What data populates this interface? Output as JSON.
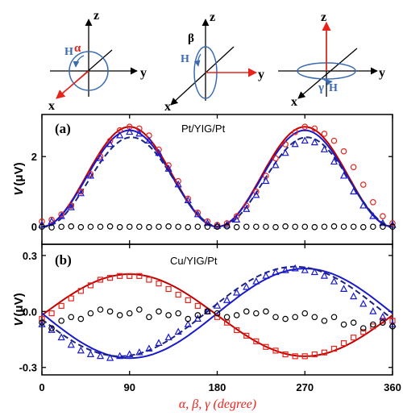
{
  "chart_data": [
    {
      "type": "scatter",
      "panel_label": "(a)",
      "sample_label": "Pt/YIG/Pt",
      "xlabel": "",
      "ylabel_main": "V",
      "ylabel_unit": "(μV)",
      "xlim": [
        0,
        360
      ],
      "ylim": [
        -0.5,
        3.2
      ],
      "yticks": [
        0,
        2
      ],
      "series": [
        {
          "color": "#e8231c",
          "marker": "o",
          "x": [
            0,
            10,
            20,
            30,
            40,
            50,
            60,
            70,
            80,
            90,
            100,
            110,
            120,
            130,
            140,
            150,
            160,
            170,
            180,
            190,
            200,
            210,
            220,
            230,
            240,
            250,
            260,
            270,
            280,
            290,
            300,
            310,
            320,
            330,
            340,
            350,
            360
          ],
          "y": [
            0.15,
            0.2,
            0.35,
            0.6,
            1.0,
            1.5,
            2.0,
            2.45,
            2.75,
            2.85,
            2.8,
            2.6,
            2.2,
            1.75,
            1.3,
            0.8,
            0.4,
            0.15,
            0.05,
            0.1,
            0.3,
            0.6,
            1.0,
            1.45,
            1.95,
            2.35,
            2.7,
            2.85,
            2.8,
            2.65,
            2.45,
            2.15,
            1.7,
            1.2,
            0.7,
            0.3,
            0.1
          ]
        },
        {
          "color": "#1a1acc",
          "marker": "^",
          "x": [
            0,
            10,
            20,
            30,
            40,
            50,
            60,
            70,
            80,
            90,
            100,
            110,
            120,
            130,
            140,
            150,
            160,
            170,
            180,
            190,
            200,
            210,
            220,
            230,
            240,
            250,
            260,
            270,
            280,
            290,
            300,
            310,
            320,
            330,
            340,
            350,
            360
          ],
          "y": [
            0.05,
            0.15,
            0.3,
            0.55,
            0.95,
            1.45,
            1.95,
            2.35,
            2.6,
            2.7,
            2.65,
            2.45,
            2.1,
            1.65,
            1.2,
            0.75,
            0.35,
            0.1,
            0.02,
            0.05,
            0.2,
            0.5,
            0.9,
            1.3,
            1.75,
            2.1,
            2.35,
            2.45,
            2.4,
            2.2,
            1.85,
            1.45,
            1.0,
            0.6,
            0.3,
            0.1,
            0.05
          ]
        },
        {
          "color": "#000000",
          "marker": "o",
          "x": [
            0,
            10,
            20,
            30,
            40,
            50,
            60,
            70,
            80,
            90,
            100,
            110,
            120,
            130,
            140,
            150,
            160,
            170,
            180,
            190,
            200,
            210,
            220,
            230,
            240,
            250,
            260,
            270,
            280,
            290,
            300,
            310,
            320,
            330,
            340,
            350,
            360
          ],
          "y": [
            0.0,
            -0.02,
            0.0,
            0.01,
            -0.01,
            0.0,
            0.0,
            0.01,
            -0.01,
            0.0,
            0.0,
            -0.01,
            0.0,
            0.01,
            0.0,
            -0.01,
            0.0,
            0.0,
            0.0,
            0.01,
            -0.01,
            0.0,
            0.0,
            0.0,
            -0.01,
            0.01,
            0.0,
            0.0,
            -0.01,
            0.0,
            0.01,
            0.0,
            0.0,
            -0.01,
            0.0,
            0.0,
            0.0
          ]
        }
      ],
      "fits": [
        {
          "color": "#c00000",
          "style": "solid",
          "amplitude": 2.85,
          "offset": 0.0
        },
        {
          "color": "#1a1acc",
          "style": "solid",
          "amplitude": 2.75,
          "offset": 0.0
        },
        {
          "color": "#1a237e",
          "style": "dashed",
          "amplitude": 2.55,
          "offset": 0.0
        }
      ]
    },
    {
      "type": "scatter",
      "panel_label": "(b)",
      "sample_label": "Cu/YIG/Pt",
      "xlabel": "α, β, γ (degree)",
      "ylabel_main": "V",
      "ylabel_unit": "(μV)",
      "xlim": [
        0,
        360
      ],
      "xticks": [
        0,
        90,
        180,
        270,
        360
      ],
      "ylim": [
        -0.34,
        0.36
      ],
      "yticks": [
        "-0.3",
        "0.0",
        "0.3"
      ],
      "series": [
        {
          "color": "#e8231c",
          "marker": "s",
          "x": [
            0,
            10,
            20,
            30,
            40,
            50,
            60,
            70,
            80,
            90,
            100,
            110,
            120,
            130,
            140,
            150,
            160,
            170,
            180,
            190,
            200,
            210,
            220,
            230,
            240,
            250,
            260,
            270,
            280,
            290,
            300,
            310,
            320,
            330,
            340,
            350,
            360
          ],
          "y": [
            -0.04,
            -0.01,
            0.03,
            0.07,
            0.11,
            0.14,
            0.17,
            0.18,
            0.19,
            0.19,
            0.19,
            0.17,
            0.15,
            0.12,
            0.09,
            0.06,
            0.03,
            0.0,
            -0.03,
            -0.06,
            -0.1,
            -0.13,
            -0.16,
            -0.19,
            -0.21,
            -0.23,
            -0.24,
            -0.24,
            -0.23,
            -0.22,
            -0.2,
            -0.17,
            -0.14,
            -0.11,
            -0.08,
            -0.05,
            -0.05
          ]
        },
        {
          "color": "#1a1acc",
          "marker": "^",
          "x": [
            0,
            10,
            20,
            30,
            40,
            50,
            60,
            70,
            80,
            90,
            100,
            110,
            120,
            130,
            140,
            150,
            160,
            170,
            180,
            190,
            200,
            210,
            220,
            230,
            240,
            250,
            260,
            270,
            280,
            290,
            300,
            310,
            320,
            330,
            340,
            350,
            360
          ],
          "y": [
            -0.07,
            -0.1,
            -0.14,
            -0.18,
            -0.21,
            -0.23,
            -0.24,
            -0.25,
            -0.24,
            -0.23,
            -0.22,
            -0.2,
            -0.17,
            -0.14,
            -0.11,
            -0.07,
            -0.04,
            0.0,
            0.03,
            0.06,
            0.1,
            0.13,
            0.16,
            0.19,
            0.21,
            0.22,
            0.23,
            0.22,
            0.21,
            0.19,
            0.16,
            0.12,
            0.08,
            0.04,
            0.0,
            -0.03,
            -0.07
          ]
        },
        {
          "color": "#000000",
          "marker": "o",
          "x": [
            0,
            10,
            20,
            30,
            40,
            50,
            60,
            70,
            80,
            90,
            100,
            110,
            120,
            130,
            140,
            150,
            160,
            170,
            180,
            190,
            200,
            210,
            220,
            230,
            240,
            250,
            260,
            270,
            280,
            290,
            300,
            310,
            320,
            330,
            340,
            350,
            360
          ],
          "y": [
            -0.06,
            -0.09,
            -0.05,
            -0.03,
            -0.04,
            -0.01,
            0.01,
            0.0,
            -0.02,
            -0.01,
            0.01,
            -0.03,
            0.0,
            -0.02,
            -0.01,
            -0.04,
            -0.02,
            0.0,
            -0.01,
            -0.03,
            -0.02,
            0.0,
            -0.01,
            0.0,
            -0.03,
            -0.04,
            -0.03,
            -0.01,
            -0.03,
            -0.05,
            -0.03,
            -0.07,
            -0.06,
            -0.09,
            -0.07,
            -0.06,
            -0.08
          ]
        }
      ],
      "fits": [
        {
          "color": "#c00000",
          "style": "solid"
        },
        {
          "color": "#1a1acc",
          "style": "solid"
        },
        {
          "color": "#1a237e",
          "style": "dashed"
        }
      ]
    }
  ],
  "diagrams": [
    {
      "axis_labels": {
        "z": "z",
        "y": "y",
        "x": "x"
      },
      "angle_label": "α",
      "field_label": "H"
    },
    {
      "axis_labels": {
        "z": "z",
        "y": "y",
        "x": "x"
      },
      "angle_label": "β",
      "field_label": "H"
    },
    {
      "axis_labels": {
        "z": "z",
        "y": "y",
        "x": "x"
      },
      "angle_label": "γ",
      "field_label": "H"
    }
  ],
  "colors": {
    "red": "#e8231c",
    "blue": "#1a1acc",
    "dark_blue": "#1a237e",
    "black": "#000000",
    "circle": "#3a6bb0"
  }
}
